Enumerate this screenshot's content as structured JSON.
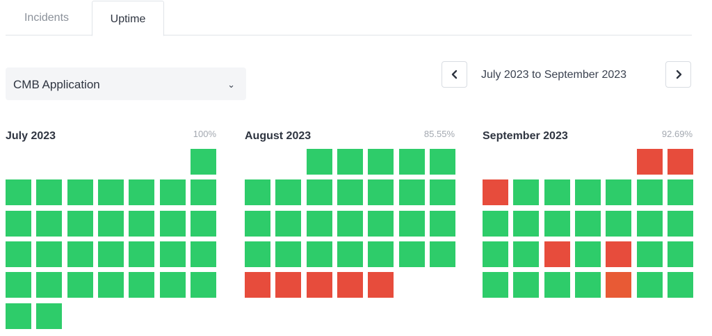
{
  "tabs": [
    {
      "label": "Incidents"
    },
    {
      "label": "Uptime"
    }
  ],
  "selector": {
    "value": "CMB Application"
  },
  "date_range": {
    "label": "July 2023 to September 2023"
  },
  "colors": {
    "up": "#2ecc6a",
    "down": "#e74c3c",
    "partial": "#e85a35"
  },
  "months": [
    {
      "title": "July 2023",
      "uptime": "100%",
      "first_weekday": 6,
      "days": 31,
      "down_days": [],
      "partial_days": []
    },
    {
      "title": "August 2023",
      "uptime": "85.55%",
      "first_weekday": 2,
      "days": 31,
      "down_days": [
        27,
        28,
        29,
        30,
        31
      ],
      "partial_days": []
    },
    {
      "title": "September 2023",
      "uptime": "92.69%",
      "first_weekday": 5,
      "days": 30,
      "down_days": [
        1,
        2,
        3,
        19,
        21
      ],
      "partial_days": [
        28
      ]
    }
  ]
}
